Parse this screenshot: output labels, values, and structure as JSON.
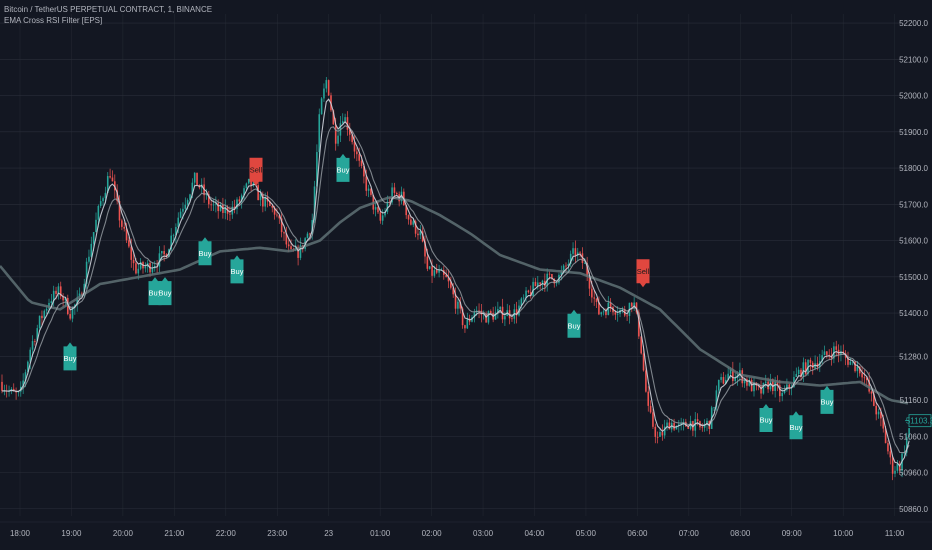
{
  "header": {
    "symbol_line": "Bitcoin / TetherUS PERPETUAL CONTRACT, 1, BINANCE",
    "indicator_line": "EMA Cross RSI Filter [EPS]"
  },
  "colors": {
    "background": "#131722",
    "grid": "#2a2e39",
    "up": "#26a69a",
    "down": "#ef5350",
    "fast_ema": "#cfd3dc",
    "slow_ema": "#9aa0a6",
    "long_ema": "#5f7174",
    "buy": "#26a69a",
    "sell": "#e0473f"
  },
  "chart_data": {
    "type": "line",
    "title": "Bitcoin / TetherUS PERPETUAL CONTRACT, 1, BINANCE",
    "indicator": "EMA Cross RSI Filter [EPS]",
    "x_ticks": [
      "18:00",
      "19:00",
      "20:00",
      "21:00",
      "22:00",
      "23:00",
      "23",
      "01:00",
      "02:00",
      "03:00",
      "04:00",
      "05:00",
      "06:00",
      "07:00",
      "08:00",
      "09:00",
      "10:00",
      "11:00"
    ],
    "y_ticks": [
      "52200.0",
      "52100.0",
      "52000.0",
      "51900.0",
      "51800.0",
      "51700.0",
      "51600.0",
      "51500.0",
      "51400.0",
      "51280.0",
      "51160.0",
      "51060.0",
      "50960.0",
      "50860.0"
    ],
    "ylim": [
      50840,
      52225
    ],
    "price_keypoints": [
      [
        0,
        51210
      ],
      [
        10,
        51180
      ],
      [
        20,
        51170
      ],
      [
        30,
        51300
      ],
      [
        40,
        51380
      ],
      [
        50,
        51440
      ],
      [
        60,
        51460
      ],
      [
        70,
        51400
      ],
      [
        80,
        51440
      ],
      [
        90,
        51580
      ],
      [
        100,
        51700
      ],
      [
        110,
        51790
      ],
      [
        118,
        51680
      ],
      [
        125,
        51610
      ],
      [
        135,
        51520
      ],
      [
        150,
        51530
      ],
      [
        165,
        51560
      ],
      [
        180,
        51680
      ],
      [
        195,
        51770
      ],
      [
        210,
        51700
      ],
      [
        220,
        51680
      ],
      [
        235,
        51690
      ],
      [
        250,
        51760
      ],
      [
        262,
        51710
      ],
      [
        275,
        51680
      ],
      [
        290,
        51560
      ],
      [
        300,
        51570
      ],
      [
        312,
        51650
      ],
      [
        320,
        51960
      ],
      [
        327,
        52050
      ],
      [
        335,
        51880
      ],
      [
        343,
        51950
      ],
      [
        350,
        51900
      ],
      [
        360,
        51800
      ],
      [
        370,
        51720
      ],
      [
        380,
        51650
      ],
      [
        392,
        51730
      ],
      [
        402,
        51720
      ],
      [
        410,
        51650
      ],
      [
        420,
        51620
      ],
      [
        428,
        51510
      ],
      [
        437,
        51510
      ],
      [
        447,
        51490
      ],
      [
        457,
        51420
      ],
      [
        465,
        51360
      ],
      [
        475,
        51410
      ],
      [
        485,
        51390
      ],
      [
        500,
        51400
      ],
      [
        515,
        51400
      ],
      [
        525,
        51440
      ],
      [
        540,
        51490
      ],
      [
        560,
        51500
      ],
      [
        575,
        51570
      ],
      [
        585,
        51530
      ],
      [
        598,
        51400
      ],
      [
        610,
        51420
      ],
      [
        625,
        51400
      ],
      [
        633,
        51440
      ],
      [
        640,
        51330
      ],
      [
        648,
        51130
      ],
      [
        658,
        51050
      ],
      [
        670,
        51100
      ],
      [
        680,
        51080
      ],
      [
        690,
        51100
      ],
      [
        700,
        51080
      ],
      [
        710,
        51100
      ],
      [
        718,
        51200
      ],
      [
        728,
        51230
      ],
      [
        740,
        51230
      ],
      [
        750,
        51200
      ],
      [
        760,
        51180
      ],
      [
        770,
        51210
      ],
      [
        782,
        51170
      ],
      [
        790,
        51200
      ],
      [
        800,
        51240
      ],
      [
        812,
        51260
      ],
      [
        825,
        51280
      ],
      [
        835,
        51300
      ],
      [
        848,
        51270
      ],
      [
        862,
        51240
      ],
      [
        872,
        51160
      ],
      [
        882,
        51090
      ],
      [
        892,
        50970
      ],
      [
        900,
        50980
      ],
      [
        910,
        51090
      ]
    ],
    "long_ema_keypoints": [
      [
        0,
        51530
      ],
      [
        30,
        51430
      ],
      [
        60,
        51410
      ],
      [
        100,
        51480
      ],
      [
        140,
        51500
      ],
      [
        180,
        51520
      ],
      [
        220,
        51570
      ],
      [
        260,
        51580
      ],
      [
        290,
        51570
      ],
      [
        320,
        51600
      ],
      [
        340,
        51650
      ],
      [
        360,
        51690
      ],
      [
        390,
        51720
      ],
      [
        410,
        51710
      ],
      [
        440,
        51670
      ],
      [
        470,
        51620
      ],
      [
        500,
        51560
      ],
      [
        540,
        51520
      ],
      [
        580,
        51510
      ],
      [
        620,
        51470
      ],
      [
        660,
        51410
      ],
      [
        700,
        51300
      ],
      [
        740,
        51230
      ],
      [
        780,
        51210
      ],
      [
        820,
        51200
      ],
      [
        860,
        51210
      ],
      [
        890,
        51160
      ],
      [
        910,
        51150
      ]
    ],
    "signals": [
      {
        "label": "Buy",
        "x": 70,
        "price": 51330,
        "side": "below"
      },
      {
        "label": "Buy",
        "x": 155,
        "price": 51510,
        "side": "below"
      },
      {
        "label": "Buy",
        "x": 165,
        "price": 51510,
        "side": "below"
      },
      {
        "label": "Buy",
        "x": 205,
        "price": 51620,
        "side": "below"
      },
      {
        "label": "Buy",
        "x": 237,
        "price": 51570,
        "side": "below"
      },
      {
        "label": "Sell",
        "x": 256,
        "price": 51740,
        "side": "above"
      },
      {
        "label": "Buy",
        "x": 343,
        "price": 51850,
        "side": "below"
      },
      {
        "label": "Buy",
        "x": 574,
        "price": 51420,
        "side": "below"
      },
      {
        "label": "Sell",
        "x": 643,
        "price": 51460,
        "side": "above"
      },
      {
        "label": "Buy",
        "x": 766,
        "price": 51160,
        "side": "below"
      },
      {
        "label": "Buy",
        "x": 796,
        "price": 51140,
        "side": "below"
      },
      {
        "label": "Buy",
        "x": 827,
        "price": 51210,
        "side": "below"
      }
    ],
    "last_price_label": "51103.3",
    "last_price": 51103,
    "grid": true
  }
}
